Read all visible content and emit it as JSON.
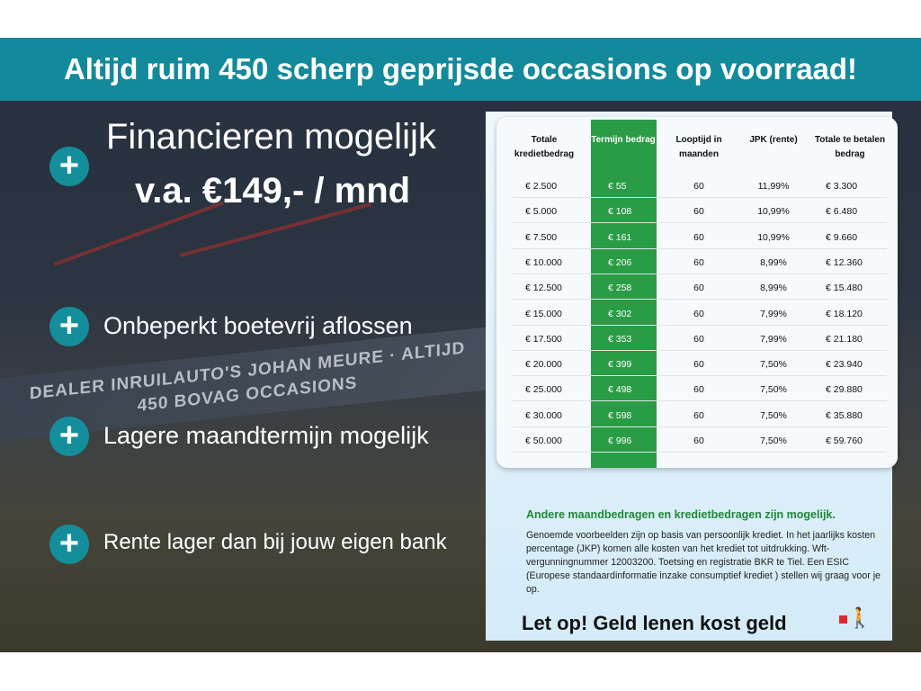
{
  "banner": "Altijd ruim 450 scherp geprijsde occasions op voorraad!",
  "headline": {
    "line1": "Financieren mogelijk",
    "line2": "v.a. €149,- / mnd"
  },
  "features": [
    "Onbeperkt boetevrij aflossen",
    "Lagere maandtermijn mogelijk",
    "Rente lager dan bij jouw eigen bank"
  ],
  "photo_sign_text": "DEALER INRUILAUTO'S JOHAN MEURE · ALTIJD 450 BOVAG OCCASIONS",
  "table": {
    "headers": [
      "Totale kredietbedrag",
      "Termijn bedrag",
      "Looptijd in maanden",
      "JPK (rente)",
      "Totale te betalen bedrag"
    ],
    "rows": [
      [
        "€ 2.500",
        "€ 55",
        "60",
        "11,99%",
        "€ 3.300"
      ],
      [
        "€ 5.000",
        "€ 108",
        "60",
        "10,99%",
        "€ 6.480"
      ],
      [
        "€ 7.500",
        "€ 161",
        "60",
        "10,99%",
        "€ 9.660"
      ],
      [
        "€ 10.000",
        "€ 206",
        "60",
        "8,99%",
        "€ 12.360"
      ],
      [
        "€ 12.500",
        "€ 258",
        "60",
        "8,99%",
        "€ 15.480"
      ],
      [
        "€ 15.000",
        "€ 302",
        "60",
        "7,99%",
        "€ 18.120"
      ],
      [
        "€ 17.500",
        "€ 353",
        "60",
        "7,99%",
        "€ 21.180"
      ],
      [
        "€ 20.000",
        "€ 399",
        "60",
        "7,50%",
        "€ 23.940"
      ],
      [
        "€ 25.000",
        "€ 498",
        "60",
        "7,50%",
        "€ 29.880"
      ],
      [
        "€ 30.000",
        "€ 598",
        "60",
        "7,50%",
        "€ 35.880"
      ],
      [
        "€ 50.000",
        "€ 996",
        "60",
        "7,50%",
        "€ 59.760"
      ]
    ]
  },
  "note": {
    "title": "Andere maandbedragen en kredietbedragen zijn mogelijk.",
    "body": "Genoemde voorbeelden zijn op basis van persoonlijk krediet. In het jaarlijks kosten percentage (JKP) komen alle kosten van het krediet tot uitdrukking. Wft-vergunningnummer 12003200. Toetsing en registratie BKR te Tiel. Een ESIC (Europese standaardinformatie inzake consumptief krediet ) stellen wij graag voor je op."
  },
  "warning": "Let op! Geld lenen kost geld",
  "colors": {
    "teal": "#138a9b",
    "green": "#2a9c45",
    "note_green": "#1f8a35"
  }
}
